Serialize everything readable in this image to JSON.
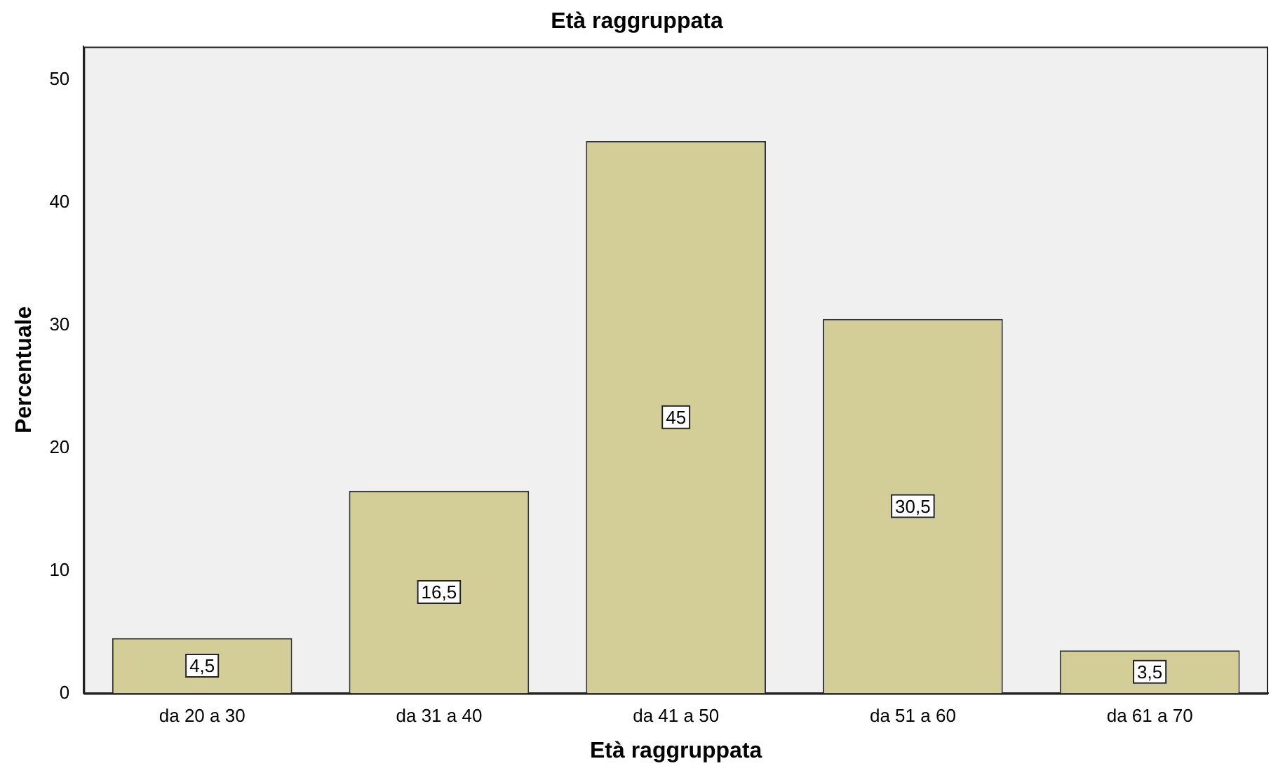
{
  "chart_data": {
    "type": "bar",
    "title": "Età raggruppata",
    "xlabel": "Età raggruppata",
    "ylabel": "Percentuale",
    "categories": [
      "da 20 a 30",
      "da 31 a 40",
      "da 41 a 50",
      "da 51 a 60",
      "da 61 a 70"
    ],
    "values": [
      4.5,
      16.5,
      45,
      30.5,
      3.5
    ],
    "value_labels": [
      "4,5",
      "16,5",
      "45",
      "30,5",
      "3,5"
    ],
    "color": "#d3ce97",
    "ylim": [
      0,
      52.7
    ],
    "yticks": [
      0,
      10,
      20,
      30,
      40,
      50
    ],
    "grid": false,
    "legend": false
  }
}
